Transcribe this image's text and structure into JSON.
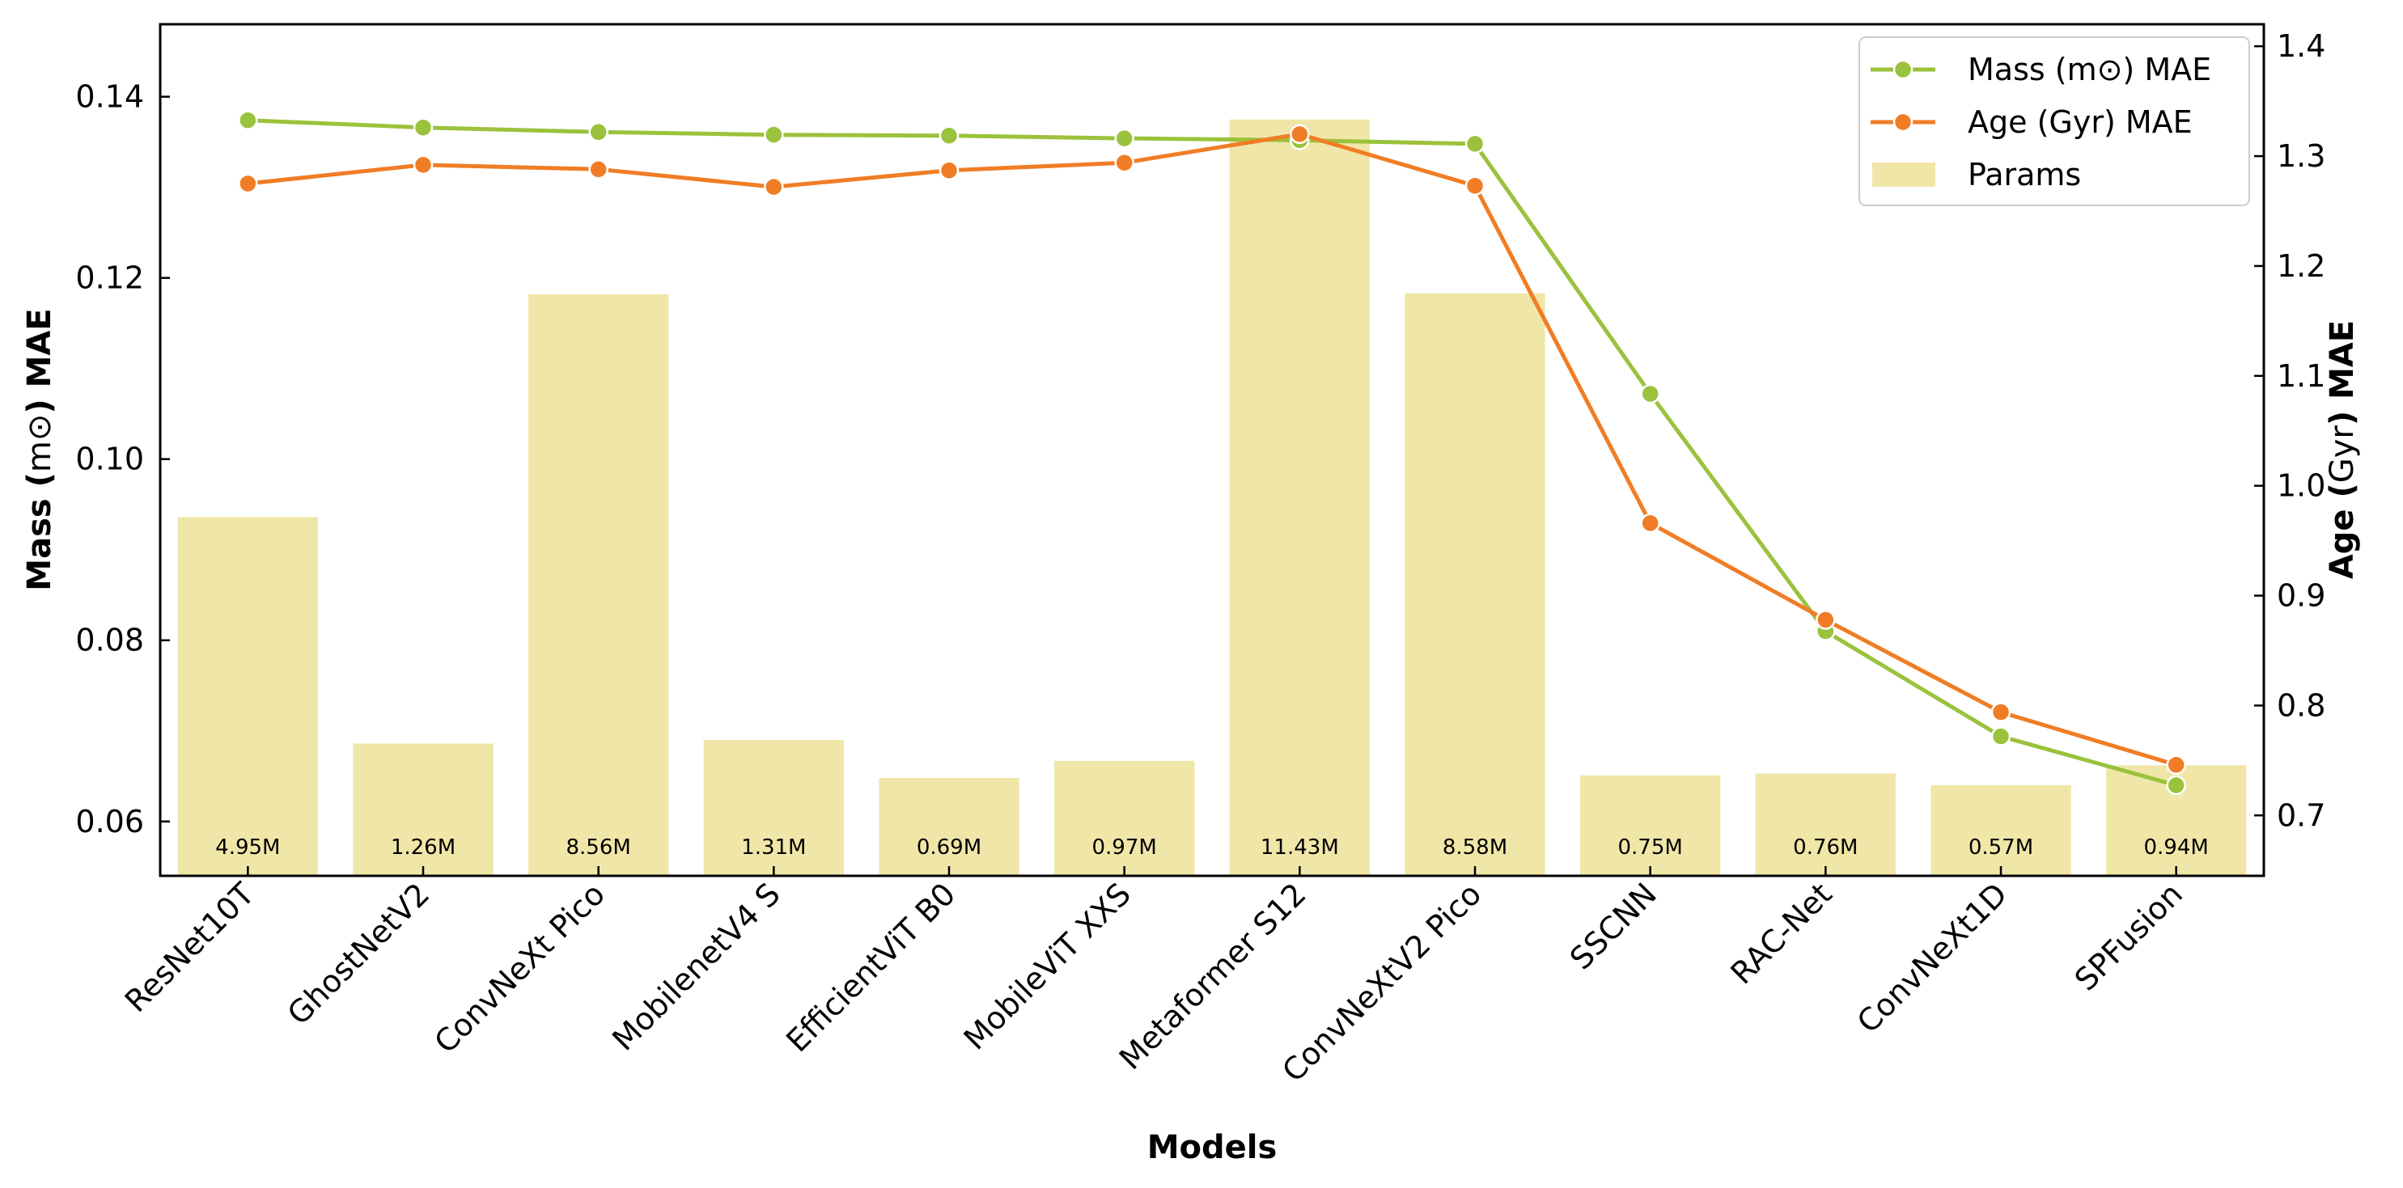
{
  "chart_data": {
    "type": "bar+line",
    "title": "",
    "xlabel": "Models",
    "ylabel_left": {
      "pre": "Mass (",
      "unit": "m⊙",
      "post": ") MAE"
    },
    "ylabel_right": {
      "pre": "Age (",
      "unit": "Gyr",
      "post": ") MAE"
    },
    "categories": [
      "ResNet10T",
      "GhostNetV2",
      "ConvNeXt Pico",
      "MobilenetV4 S",
      "EfficientViT B0",
      "MobileViT XXS",
      "Metaformer S12",
      "ConvNeXtV2 Pico",
      "SSCNN",
      "RAC-Net",
      "ConvNeXt1D",
      "SPFusion"
    ],
    "ylim_left": [
      0.054,
      0.148
    ],
    "yticks_left": [
      "0.06",
      "0.08",
      "0.10",
      "0.12",
      "0.14"
    ],
    "ylim_right": [
      0.645,
      1.42
    ],
    "yticks_right": [
      "0.7",
      "0.8",
      "0.9",
      "1.0",
      "1.1",
      "1.2",
      "1.3",
      "1.4"
    ],
    "params_bar_top_left_axis": [
      0.0936,
      0.0686,
      0.1182,
      0.069,
      0.0648,
      0.0667,
      0.1375,
      0.1183,
      0.0651,
      0.0653,
      0.064,
      0.0662
    ],
    "param_labels": [
      "4.95M",
      "1.26M",
      "8.56M",
      "1.31M",
      "0.69M",
      "0.97M",
      "11.43M",
      "8.58M",
      "0.75M",
      "0.76M",
      "0.57M",
      "0.94M"
    ],
    "series": [
      {
        "name": "Params",
        "axis": "left",
        "kind": "bar",
        "color": "#f0e6a8"
      },
      {
        "name": "Mass (m⊙) MAE",
        "axis": "left",
        "kind": "line",
        "color": "#9ac23c",
        "values": [
          0.1374,
          0.1366,
          0.1361,
          0.1358,
          0.1357,
          0.1354,
          0.1352,
          0.1348,
          0.1072,
          0.081,
          0.0694,
          0.064
        ]
      },
      {
        "name": "Age (Gyr) MAE",
        "axis": "right",
        "kind": "line",
        "color": "#f07d25",
        "values": [
          1.275,
          1.292,
          1.288,
          1.272,
          1.287,
          1.294,
          1.32,
          1.273,
          0.966,
          0.878,
          0.794,
          0.746
        ]
      }
    ],
    "legend": {
      "position": "top-right",
      "entries": [
        "Mass (m⊙) MAE",
        "Age (Gyr) MAE",
        "Params"
      ]
    },
    "grid": false
  }
}
